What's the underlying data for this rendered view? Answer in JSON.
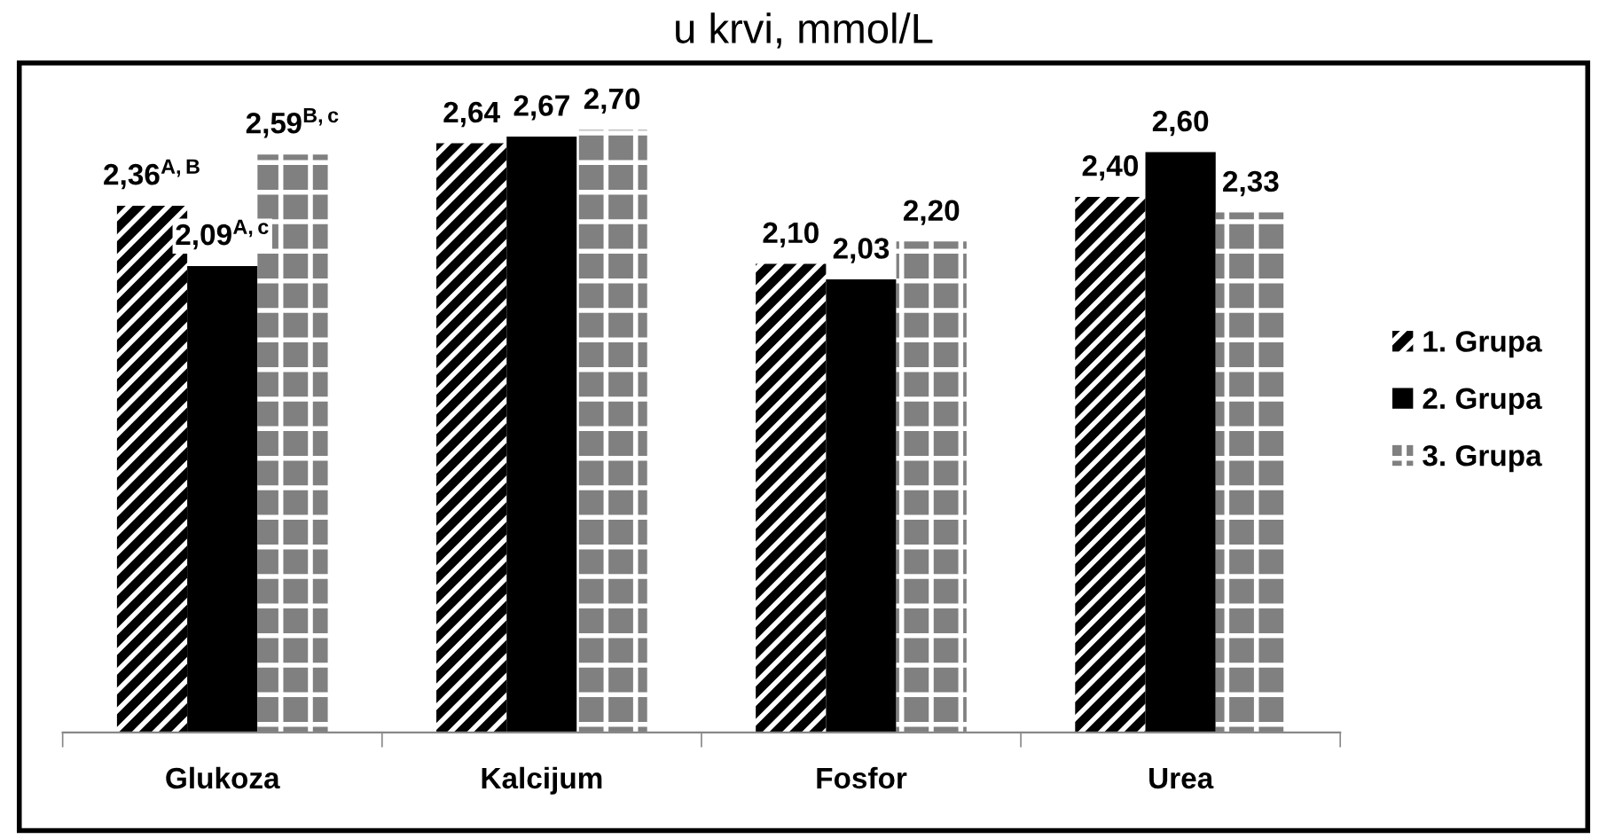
{
  "chart_data": {
    "type": "bar",
    "title": "u krvi, mmol/L",
    "categories": [
      "Glukoza",
      "Kalcijum",
      "Fosfor",
      "Urea"
    ],
    "series": [
      {
        "name": "1. Grupa",
        "color": "#000000",
        "values": [
          2.36,
          2.64,
          2.1,
          2.4
        ],
        "value_labels": [
          "2,36$^{A,B}$",
          "2,64",
          "2,10",
          "2,40"
        ]
      },
      {
        "name": "2. Grupa",
        "color": "#000000",
        "values": [
          2.09,
          2.67,
          2.03,
          2.6
        ],
        "value_labels": [
          "2,09$^{A,c}$",
          "2,67",
          "2,03",
          "2,60"
        ]
      },
      {
        "name": "3. Grupa",
        "color": "#808080",
        "values": [
          2.59,
          2.7,
          2.2,
          2.33
        ],
        "value_labels": [
          "2,59$^{B,c}$",
          "2,70",
          "2,20",
          "2,33"
        ]
      }
    ],
    "legend": "right",
    "grid": false,
    "tick_labels": "x"
  }
}
